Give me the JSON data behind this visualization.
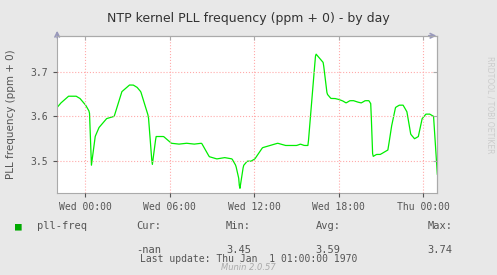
{
  "title": "NTP kernel PLL frequency (ppm + 0) - by day",
  "ylabel": "PLL frequency (ppm + 0)",
  "right_label": "RRDTOOL / TOBI OETIKER",
  "bg_color": "#e8e8e8",
  "plot_bg_color": "#ffffff",
  "grid_color": "#ffaaaa",
  "line_color": "#00ee00",
  "border_color": "#aaaaaa",
  "ylim": [
    3.43,
    3.78
  ],
  "yticks": [
    3.5,
    3.6,
    3.7
  ],
  "xlabel_ticks": [
    "Wed 00:00",
    "Wed 06:00",
    "Wed 12:00",
    "Wed 18:00",
    "Thu 00:00"
  ],
  "legend_label": "pll-freq",
  "legend_color": "#00aa00",
  "cur_label": "Cur:",
  "cur_value": "-nan",
  "min_label": "Min:",
  "min_value": "3.45",
  "avg_label": "Avg:",
  "avg_value": "3.59",
  "max_label": "Max:",
  "max_value": "3.74",
  "last_update": "Last update: Thu Jan  1 01:00:00 1970",
  "munin_label": "Munin 2.0.57",
  "title_color": "#333333",
  "axis_label_color": "#555555",
  "tick_color": "#555555",
  "stats_color": "#555555",
  "arrow_color": "#9999bb"
}
